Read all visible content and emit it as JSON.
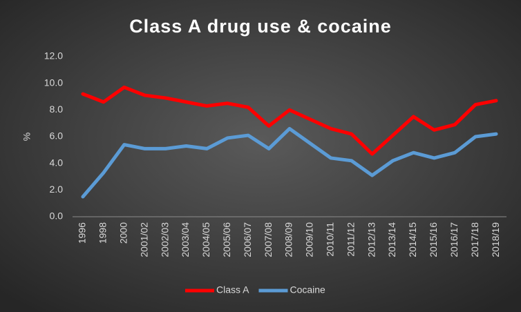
{
  "chart_data": {
    "type": "line",
    "title": "Class A drug use & cocaine",
    "y_label": "%",
    "categories": [
      "1996",
      "1998",
      "2000",
      "2001/02",
      "2002/03",
      "2003/04",
      "2004/05",
      "2005/06",
      "2006/07",
      "2007/08",
      "2008/09",
      "2009/10",
      "2010/11",
      "2011/12",
      "2012/13",
      "2013/14",
      "2014/15",
      "2015/16",
      "2016/17",
      "2017/18",
      "2018/19"
    ],
    "series": [
      {
        "name": "Class A",
        "color": "#ff0000",
        "values": [
          9.2,
          8.6,
          9.7,
          9.1,
          8.9,
          8.6,
          8.3,
          8.5,
          8.2,
          6.8,
          8.0,
          7.3,
          6.6,
          6.2,
          4.7,
          6.1,
          7.5,
          6.5,
          6.9,
          8.4,
          8.7
        ]
      },
      {
        "name": "Cocaine",
        "color": "#5b9bd5",
        "values": [
          1.5,
          3.3,
          5.4,
          5.1,
          5.1,
          5.3,
          5.1,
          5.9,
          6.1,
          5.1,
          6.6,
          5.5,
          4.4,
          4.2,
          3.1,
          4.2,
          4.8,
          4.4,
          4.8,
          6.0,
          6.2
        ]
      }
    ],
    "ylim": [
      0,
      12
    ],
    "yticks": [
      {
        "value": 0,
        "label": "0.0"
      },
      {
        "value": 2,
        "label": "2.0"
      },
      {
        "value": 4,
        "label": "4.0"
      },
      {
        "value": 6,
        "label": "6.0"
      },
      {
        "value": 8,
        "label": "8.0"
      },
      {
        "value": 10,
        "label": "10.0"
      },
      {
        "value": 12,
        "label": "12.0"
      }
    ],
    "legend": "bottom",
    "grid": false
  }
}
